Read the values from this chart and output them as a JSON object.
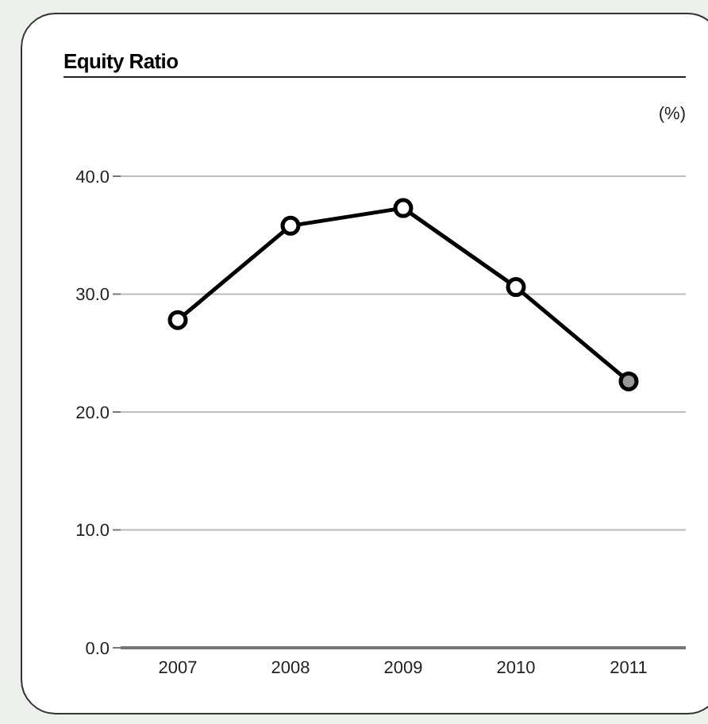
{
  "chart_data": {
    "type": "line",
    "title": "Equity Ratio",
    "annotations": [
      "(%)"
    ],
    "categories": [
      "2007",
      "2008",
      "2009",
      "2010",
      "2011"
    ],
    "series": [
      {
        "color": "#000000",
        "values": [
          27.8,
          35.8,
          37.3,
          30.6,
          22.6
        ],
        "colors": [
          "#ffffff",
          "#ffffff",
          "#ffffff",
          "#ffffff",
          "#999999"
        ]
      }
    ],
    "ylim": [
      0,
      40
    ],
    "yticks": [
      {
        "value": 0,
        "label": "0.0"
      },
      {
        "value": 10,
        "label": "10.0"
      },
      {
        "value": 20,
        "label": "20.0"
      },
      {
        "value": 30,
        "label": "30.0"
      },
      {
        "value": 40,
        "label": "40.0"
      }
    ],
    "grid": "y",
    "marker": "circle",
    "line_style": "solid",
    "legend": false
  }
}
